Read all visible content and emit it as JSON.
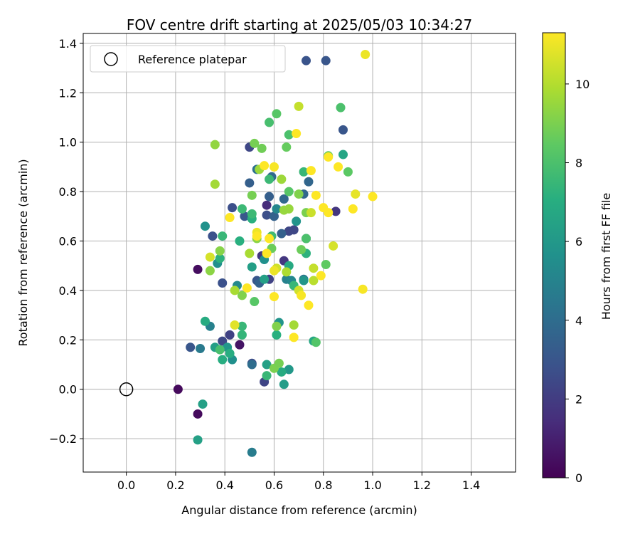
{
  "chart_data": {
    "type": "scatter",
    "title": "FOV centre drift starting at 2025/05/03 10:34:27",
    "xlabel": "Angular distance from reference (arcmin)",
    "ylabel": "Rotation from reference (arcmin)",
    "xlim": [
      -0.175,
      1.58
    ],
    "ylim": [
      -0.335,
      1.44
    ],
    "xticks": [
      0.0,
      0.2,
      0.4,
      0.6,
      0.8,
      1.0,
      1.2,
      1.4
    ],
    "xtick_labels": [
      "0.0",
      "0.2",
      "0.4",
      "0.6",
      "0.8",
      "1.0",
      "1.2",
      "1.4"
    ],
    "yticks": [
      -0.2,
      0.0,
      0.2,
      0.4,
      0.6,
      0.8,
      1.0,
      1.2,
      1.4
    ],
    "ytick_labels": [
      "−0.2",
      "0.0",
      "0.2",
      "0.4",
      "0.6",
      "0.8",
      "1.0",
      "1.2",
      "1.4"
    ],
    "grid": true,
    "legend": {
      "position": "top-left",
      "entries": [
        {
          "label": "Reference platepar",
          "marker": "open-circle"
        }
      ]
    },
    "reference_point": {
      "x": 0.0,
      "y": 0.0
    },
    "colorbar": {
      "label": "Hours from first FF file",
      "colormap": "viridis",
      "range": [
        0,
        11.3
      ],
      "ticks": [
        0,
        2,
        4,
        6,
        8,
        10
      ],
      "tick_labels": [
        "0",
        "2",
        "4",
        "6",
        "8",
        "10"
      ]
    },
    "points": [
      [
        0.21,
        0.0,
        0.3
      ],
      [
        0.29,
        -0.1,
        0.3
      ],
      [
        0.29,
        0.485,
        0.4
      ],
      [
        0.46,
        0.18,
        0.6
      ],
      [
        0.57,
        0.745,
        1.4
      ],
      [
        0.55,
        0.54,
        1.8
      ],
      [
        0.64,
        0.52,
        1.8
      ],
      [
        0.42,
        0.22,
        2.2
      ],
      [
        0.58,
        0.445,
        2.2
      ],
      [
        0.85,
        0.72,
        1.8
      ],
      [
        0.68,
        0.645,
        2.4
      ],
      [
        0.66,
        0.64,
        2.4
      ],
      [
        0.39,
        0.195,
        2.5
      ],
      [
        0.43,
        0.735,
        2.7
      ],
      [
        0.57,
        0.705,
        2.7
      ],
      [
        0.51,
        0.105,
        2.6
      ],
      [
        0.56,
        0.03,
        2.3
      ],
      [
        0.35,
        0.62,
        2.8
      ],
      [
        0.39,
        0.43,
        2.8
      ],
      [
        0.5,
        0.98,
        2.4
      ],
      [
        0.53,
        0.44,
        3.0
      ],
      [
        0.48,
        0.7,
        3.1
      ],
      [
        0.26,
        0.17,
        3.0
      ],
      [
        0.6,
        0.7,
        3.5
      ],
      [
        0.54,
        0.43,
        3.5
      ],
      [
        0.58,
        0.78,
        3.4
      ],
      [
        0.88,
        1.05,
        3.0
      ],
      [
        0.73,
        1.33,
        2.9
      ],
      [
        0.81,
        1.33,
        3.0
      ],
      [
        0.63,
        0.63,
        3.5
      ],
      [
        0.74,
        0.84,
        3.7
      ],
      [
        0.72,
        0.79,
        3.8
      ],
      [
        0.51,
        0.1,
        4.0
      ],
      [
        0.64,
        0.77,
        3.8
      ],
      [
        0.5,
        0.835,
        3.4
      ],
      [
        0.59,
        0.86,
        3.9
      ],
      [
        0.72,
        0.445,
        4.4
      ],
      [
        0.3,
        0.165,
        4.6
      ],
      [
        0.51,
        -0.255,
        4.7
      ],
      [
        0.53,
        0.89,
        4.2
      ],
      [
        0.73,
        0.61,
        4.5
      ],
      [
        0.34,
        0.255,
        4.9
      ],
      [
        0.65,
        0.445,
        4.9
      ],
      [
        0.67,
        0.44,
        5.2
      ],
      [
        0.61,
        0.73,
        5.2
      ],
      [
        0.45,
        0.42,
        5.3
      ],
      [
        0.37,
        0.51,
        5.6
      ],
      [
        0.43,
        0.12,
        5.6
      ],
      [
        0.32,
        0.66,
        5.7
      ],
      [
        0.56,
        0.525,
        5.6
      ],
      [
        0.69,
        0.68,
        5.8
      ],
      [
        0.72,
        0.44,
        5.9
      ],
      [
        0.41,
        0.17,
        5.9
      ],
      [
        0.62,
        0.27,
        5.8
      ],
      [
        0.66,
        0.08,
        6.0
      ],
      [
        0.57,
        0.1,
        6.4
      ],
      [
        0.64,
        0.02,
        6.2
      ],
      [
        0.31,
        -0.06,
        6.4
      ],
      [
        0.29,
        -0.205,
        6.4
      ],
      [
        0.36,
        0.17,
        6.3
      ],
      [
        0.51,
        0.495,
        6.3
      ],
      [
        0.56,
        0.445,
        6.4
      ],
      [
        0.88,
        0.95,
        6.6
      ],
      [
        0.66,
        0.5,
        6.8
      ],
      [
        0.76,
        0.195,
        6.7
      ],
      [
        0.32,
        0.275,
        6.9
      ],
      [
        0.42,
        0.145,
        7.0
      ],
      [
        0.63,
        0.07,
        6.9
      ],
      [
        0.39,
        0.12,
        7.0
      ],
      [
        0.38,
        0.53,
        7.2
      ],
      [
        0.46,
        0.6,
        7.1
      ],
      [
        0.51,
        0.69,
        7.1
      ],
      [
        0.61,
        0.22,
        7.1
      ],
      [
        0.73,
        0.55,
        7.2
      ],
      [
        0.47,
        0.22,
        7.4
      ],
      [
        0.47,
        0.255,
        7.5
      ],
      [
        0.57,
        0.055,
        7.5
      ],
      [
        0.72,
        0.88,
        7.5
      ],
      [
        0.68,
        0.42,
        7.5
      ],
      [
        0.51,
        0.71,
        7.6
      ],
      [
        0.58,
        0.85,
        7.6
      ],
      [
        0.39,
        0.62,
        7.5
      ],
      [
        0.47,
        0.73,
        7.6
      ],
      [
        0.59,
        0.62,
        7.7
      ],
      [
        0.38,
        0.16,
        7.9
      ],
      [
        0.58,
        1.08,
        7.9
      ],
      [
        0.66,
        1.03,
        8.0
      ],
      [
        0.73,
        0.61,
        8.0
      ],
      [
        0.87,
        1.14,
        8.0
      ],
      [
        0.77,
        0.19,
        8.2
      ],
      [
        0.52,
        0.355,
        8.3
      ],
      [
        0.61,
        1.115,
        8.3
      ],
      [
        0.66,
        0.8,
        8.3
      ],
      [
        0.81,
        0.505,
        8.5
      ],
      [
        0.82,
        0.945,
        8.6
      ],
      [
        0.9,
        0.88,
        8.4
      ],
      [
        0.71,
        0.565,
        8.7
      ],
      [
        0.65,
        0.98,
        8.6
      ],
      [
        0.51,
        0.785,
        8.9
      ],
      [
        0.55,
        0.975,
        8.8
      ],
      [
        0.52,
        0.995,
        8.9
      ],
      [
        0.59,
        0.57,
        8.7
      ],
      [
        0.6,
        0.085,
        9.0
      ],
      [
        0.7,
        0.79,
        9.1
      ],
      [
        0.73,
        0.715,
        9.0
      ],
      [
        0.34,
        0.48,
        9.3
      ],
      [
        0.47,
        0.38,
        9.1
      ],
      [
        0.38,
        0.56,
        9.2
      ],
      [
        0.62,
        0.105,
        8.9
      ],
      [
        0.36,
        0.99,
        9.4
      ],
      [
        0.61,
        0.255,
        9.1
      ],
      [
        0.53,
        0.61,
        9.3
      ],
      [
        0.64,
        0.725,
        9.5
      ],
      [
        0.66,
        0.73,
        9.5
      ],
      [
        0.63,
        0.85,
        9.6
      ],
      [
        0.44,
        0.4,
        9.8
      ],
      [
        0.36,
        0.83,
        9.7
      ],
      [
        0.54,
        0.89,
        9.6
      ],
      [
        0.5,
        0.55,
        9.8
      ],
      [
        0.68,
        0.26,
        9.7
      ],
      [
        0.65,
        0.475,
        9.9
      ],
      [
        0.76,
        0.44,
        10.1
      ],
      [
        0.76,
        0.49,
        10.3
      ],
      [
        0.7,
        1.145,
        10.3
      ],
      [
        0.7,
        0.4,
        10.5
      ],
      [
        0.61,
        0.49,
        10.5
      ],
      [
        0.84,
        0.58,
        10.6
      ],
      [
        0.75,
        0.715,
        10.4
      ],
      [
        0.34,
        0.535,
        10.6
      ],
      [
        0.93,
        0.79,
        10.9
      ],
      [
        0.44,
        0.26,
        10.8
      ],
      [
        0.6,
        0.48,
        11.0
      ],
      [
        0.97,
        1.355,
        11.0
      ],
      [
        0.53,
        0.635,
        11.0
      ],
      [
        0.6,
        0.9,
        11.2
      ],
      [
        0.71,
        0.38,
        11.2
      ],
      [
        0.96,
        0.405,
        11.2
      ],
      [
        0.74,
        0.34,
        11.3
      ],
      [
        0.68,
        0.21,
        11.3
      ],
      [
        0.69,
        1.035,
        11.3
      ],
      [
        0.75,
        0.885,
        11.3
      ],
      [
        0.77,
        0.785,
        11.3
      ],
      [
        0.79,
        0.46,
        11.3
      ],
      [
        0.8,
        0.735,
        11.3
      ],
      [
        0.82,
        0.715,
        11.3
      ],
      [
        0.82,
        0.94,
        11.3
      ],
      [
        0.86,
        0.9,
        11.3
      ],
      [
        0.92,
        0.73,
        11.3
      ],
      [
        1.0,
        0.78,
        11.3
      ],
      [
        0.6,
        0.375,
        11.3
      ],
      [
        0.56,
        0.905,
        11.3
      ],
      [
        0.57,
        0.55,
        11.3
      ],
      [
        0.58,
        0.61,
        11.3
      ],
      [
        0.42,
        0.695,
        11.3
      ],
      [
        0.49,
        0.41,
        11.3
      ],
      [
        0.53,
        0.62,
        11.3
      ]
    ]
  }
}
